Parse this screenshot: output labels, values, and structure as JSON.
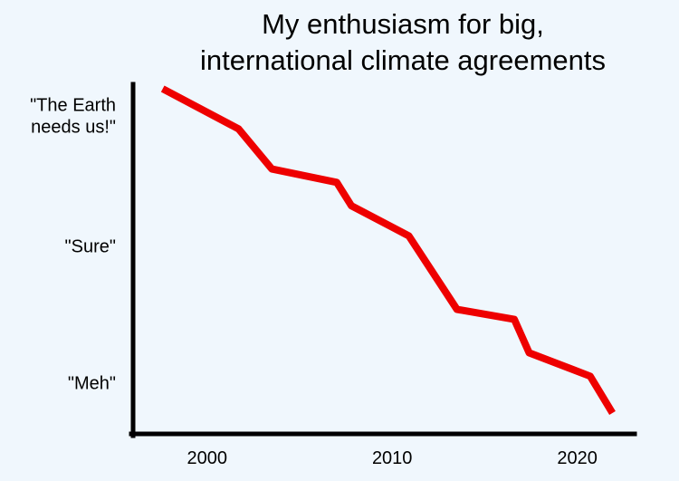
{
  "chart_data": {
    "type": "line",
    "title_lines": [
      "My enthusiasm for big,",
      "international climate agreements"
    ],
    "xlabel": "",
    "ylabel": "",
    "xlim": [
      1996.0,
      2023.1
    ],
    "ylim": [
      0,
      100
    ],
    "x_ticks": [
      {
        "value": 2000,
        "label": "2000"
      },
      {
        "value": 2010,
        "label": "2010"
      },
      {
        "value": 2020,
        "label": "2020"
      }
    ],
    "y_ticks": [
      {
        "value": 12,
        "lines": [
          "\"Meh\""
        ]
      },
      {
        "value": 53,
        "lines": [
          "\"Sure\""
        ]
      },
      {
        "value": 92,
        "lines": [
          "\"The Earth",
          "needs us!\""
        ]
      }
    ],
    "series": [
      {
        "color": "#ee0000",
        "points": [
          {
            "x": 1997.6,
            "y": 100
          },
          {
            "x": 2001.7,
            "y": 88
          },
          {
            "x": 2003.5,
            "y": 76
          },
          {
            "x": 2007.0,
            "y": 72
          },
          {
            "x": 2007.8,
            "y": 65
          },
          {
            "x": 2010.9,
            "y": 56
          },
          {
            "x": 2013.5,
            "y": 34
          },
          {
            "x": 2016.6,
            "y": 31
          },
          {
            "x": 2017.4,
            "y": 21
          },
          {
            "x": 2020.7,
            "y": 14
          },
          {
            "x": 2021.9,
            "y": 3
          }
        ]
      }
    ],
    "grid": false,
    "legend": "none"
  }
}
